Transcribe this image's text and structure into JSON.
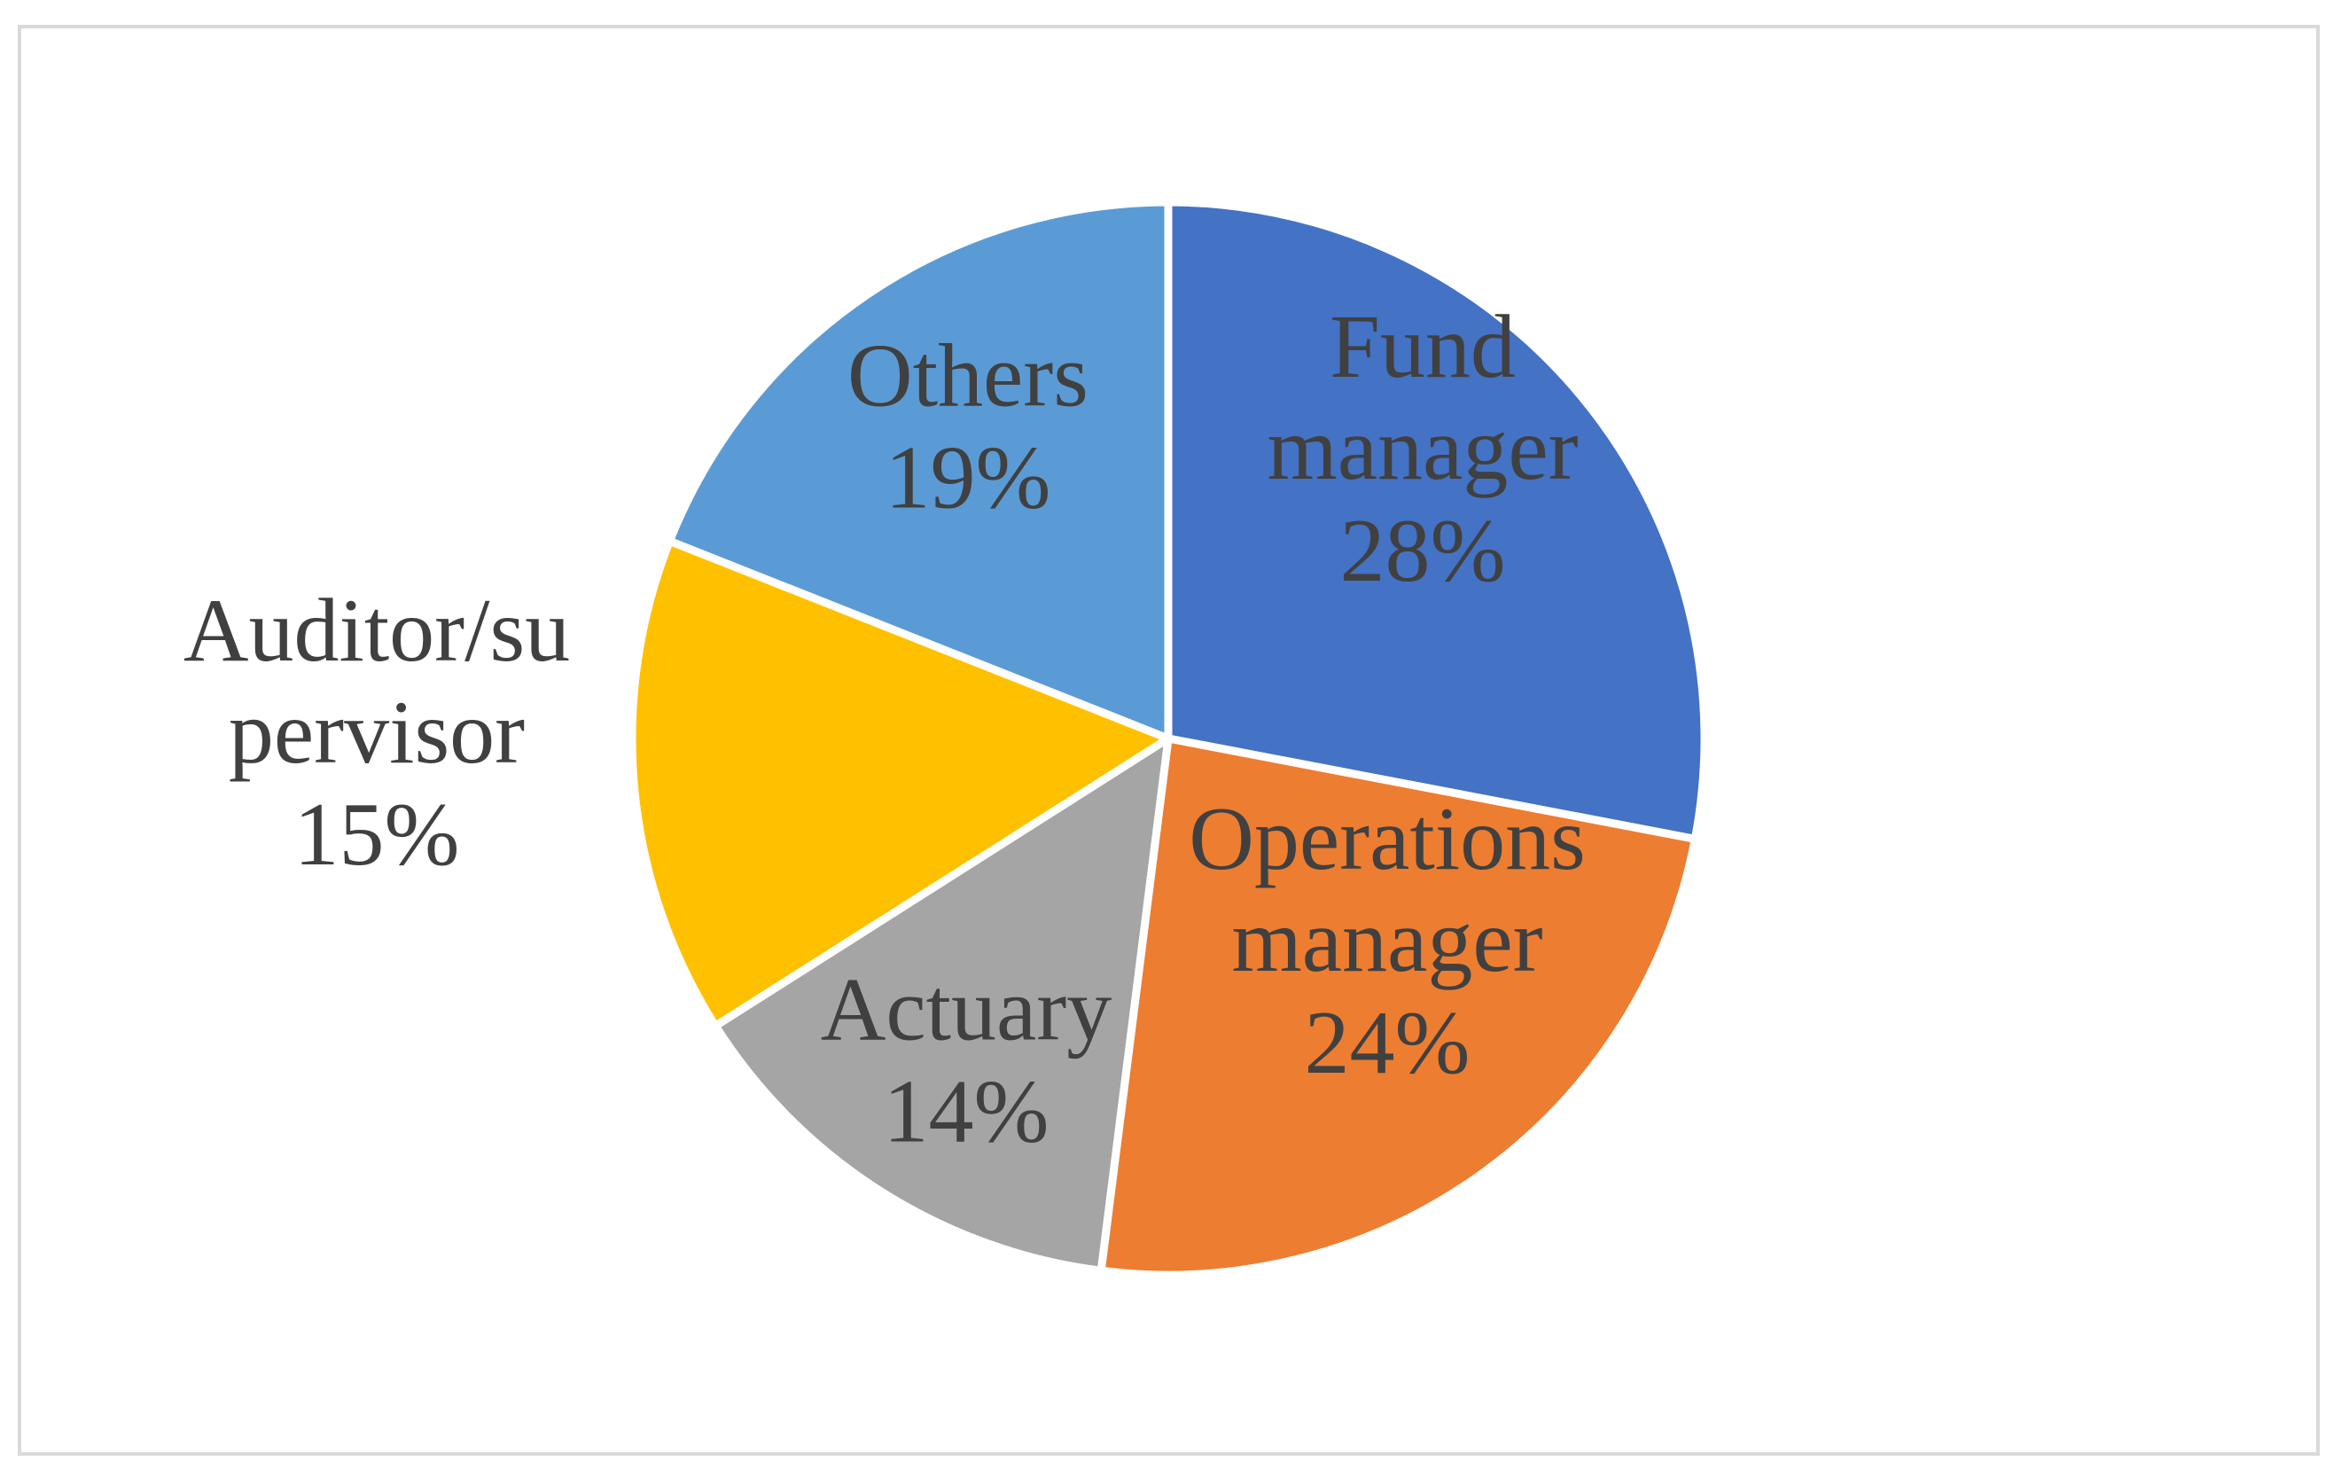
{
  "chart_data": {
    "type": "pie",
    "title": "",
    "slices": [
      {
        "name": "Fund manager",
        "label_lines": [
          "Fund",
          "manager"
        ],
        "pct_label": "28%",
        "value": 28,
        "color": "#4472C4"
      },
      {
        "name": "Operations manager",
        "label_lines": [
          "Operations",
          "manager"
        ],
        "pct_label": "24%",
        "value": 24,
        "color": "#ED7D31"
      },
      {
        "name": "Actuary",
        "label_lines": [
          "Actuary"
        ],
        "pct_label": "14%",
        "value": 14,
        "color": "#A5A5A5"
      },
      {
        "name": "Auditor/supervisor",
        "label_lines": [
          "Auditor/su",
          "pervisor"
        ],
        "pct_label": "15%",
        "value": 15,
        "color": "#FFC000"
      },
      {
        "name": "Others",
        "label_lines": [
          "Others"
        ],
        "pct_label": "19%",
        "value": 19,
        "color": "#5B9BD5"
      }
    ],
    "legend": "none",
    "start_angle": "12 o'clock, clockwise"
  }
}
